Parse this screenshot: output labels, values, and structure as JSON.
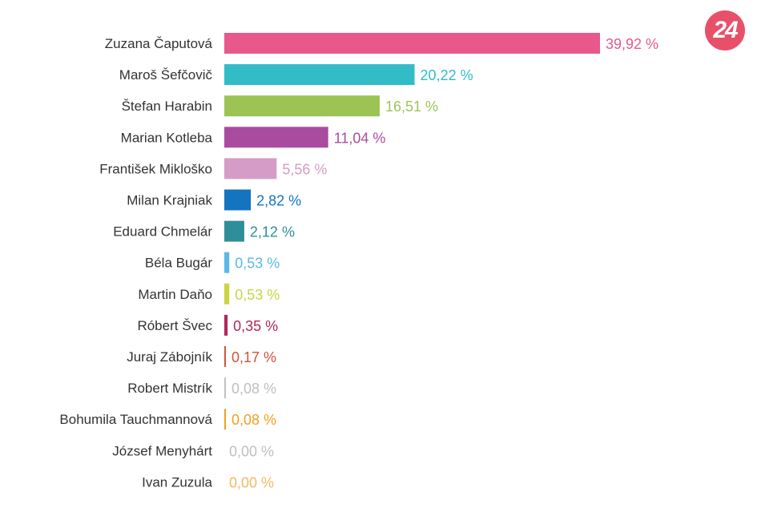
{
  "logo": {
    "text": "24",
    "color": "#e8506a"
  },
  "chart_data": {
    "type": "bar",
    "orientation": "horizontal",
    "title": "",
    "xlabel": "",
    "ylabel": "",
    "xlim": [
      0,
      40
    ],
    "grid": false,
    "legend": "none",
    "categories": [
      "Zuzana Čaputová",
      "Maroš Šefčovič",
      "Štefan Harabin",
      "Marian Kotleba",
      "František Mikloško",
      "Milan Krajniak",
      "Eduard Chmelár",
      "Béla Bugár",
      "Martin Daňo",
      "Róbert Švec",
      "Juraj Zábojník",
      "Robert Mistrík",
      "Bohumila Tauchmannová",
      "József Menyhárt",
      "Ivan Zuzula"
    ],
    "values": [
      39.92,
      20.22,
      16.51,
      11.04,
      5.56,
      2.82,
      2.12,
      0.53,
      0.53,
      0.35,
      0.17,
      0.08,
      0.08,
      0.0,
      0.0
    ],
    "value_labels": [
      "39,92 %",
      "20,22 %",
      "16,51 %",
      "11,04 %",
      "5,56 %",
      "2,82 %",
      "2,12 %",
      "0,53 %",
      "0,53 %",
      "0,35 %",
      "0,17 %",
      "0,08 %",
      "0,08 %",
      "0,00 %",
      "0,00 %"
    ],
    "colors": [
      "#e8588a",
      "#32bcc8",
      "#9bc455",
      "#a94c9f",
      "#d69cc8",
      "#1574c0",
      "#2e8f9a",
      "#5ab9e8",
      "#c9d640",
      "#b2265a",
      "#d2533a",
      "#c0c0c0",
      "#f2a020",
      "#c0c0c0",
      "#f5b860"
    ]
  }
}
